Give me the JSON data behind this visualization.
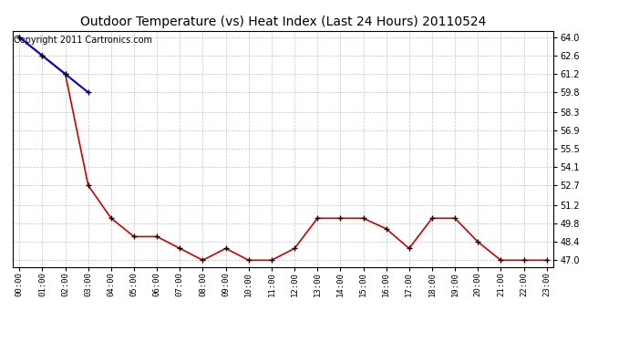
{
  "title": "Outdoor Temperature (vs) Heat Index (Last 24 Hours) 20110524",
  "copyright_text": "Copyright 2011 Cartronics.com",
  "x_labels": [
    "00:00",
    "01:00",
    "02:00",
    "03:00",
    "04:00",
    "05:00",
    "06:00",
    "07:00",
    "08:00",
    "09:00",
    "10:00",
    "11:00",
    "12:00",
    "13:00",
    "14:00",
    "15:00",
    "16:00",
    "17:00",
    "18:00",
    "19:00",
    "20:00",
    "21:00",
    "22:00",
    "23:00"
  ],
  "temp_data": [
    64.0,
    62.6,
    61.2,
    52.7,
    50.2,
    48.8,
    48.8,
    47.9,
    47.0,
    47.9,
    47.0,
    47.0,
    47.9,
    50.2,
    50.2,
    50.2,
    49.4,
    47.9,
    50.2,
    50.2,
    48.4,
    47.0,
    47.0,
    47.0
  ],
  "blue_data": [
    64.0,
    62.6,
    61.2,
    59.8,
    null,
    null,
    null,
    null,
    null,
    null,
    null,
    null,
    null,
    null,
    null,
    null,
    null,
    null,
    null,
    null,
    null,
    null,
    null,
    null
  ],
  "y_ticks": [
    47.0,
    48.4,
    49.8,
    51.2,
    52.7,
    54.1,
    55.5,
    56.9,
    58.3,
    59.8,
    61.2,
    62.6,
    64.0
  ],
  "ylim": [
    46.5,
    64.5
  ],
  "temp_color": "#cc0000",
  "blue_color": "#0000cc",
  "grid_color": "#aaaaaa",
  "bg_color": "#ffffff",
  "plot_bg_color": "#ffffff",
  "title_fontsize": 10,
  "copyright_fontsize": 7
}
